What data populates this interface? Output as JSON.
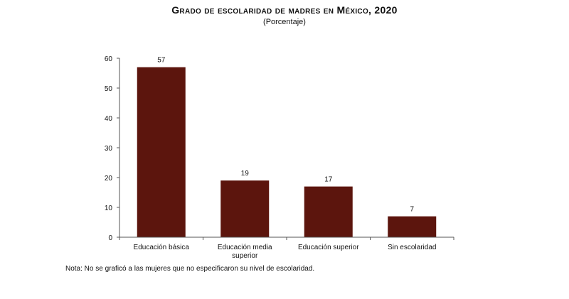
{
  "chart_data": {
    "type": "bar",
    "title": "Grado de escolaridad de madres en México, 2020",
    "subtitle": "(Porcentaje)",
    "categories": [
      [
        "Educación básica"
      ],
      [
        "Educación media",
        "superior"
      ],
      [
        "Educación superior"
      ],
      [
        "Sin escolaridad"
      ]
    ],
    "values": [
      57,
      19,
      17,
      7
    ],
    "data_labels": [
      "57",
      "19",
      "17",
      "7"
    ],
    "ylim": [
      0,
      60
    ],
    "yticks": [
      0,
      10,
      20,
      30,
      40,
      50,
      60
    ],
    "xlabel": "",
    "ylabel": "",
    "grid": false,
    "legend": "none",
    "bar_color": "#5c150d"
  },
  "note": "Nota: No se graficó a las mujeres que no especificaron su nivel de escolaridad."
}
